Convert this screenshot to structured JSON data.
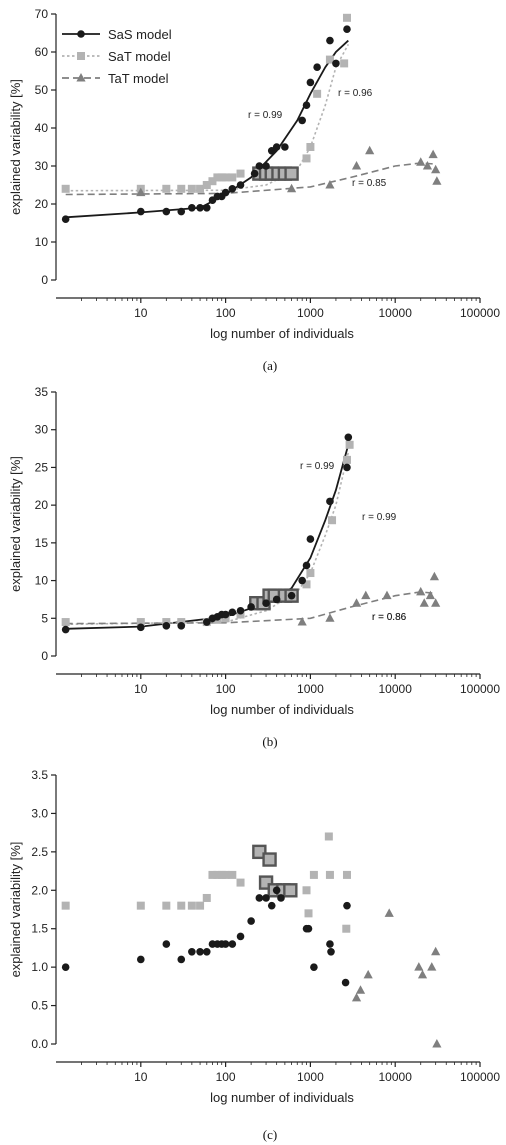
{
  "colors": {
    "sas": "#1a1a1a",
    "sat": "#b3b3b3",
    "tat": "#7f7f7f",
    "boxed": "#555555"
  },
  "chart_data": [
    {
      "type": "scatter",
      "caption": "(a)",
      "xlabel": "log number of individuals",
      "ylabel": "explained variability [%]",
      "x_scale": "log",
      "xlim": [
        1,
        100000
      ],
      "ylim": [
        0,
        70
      ],
      "x_ticks": [
        "10",
        "100",
        "1000",
        "10000",
        "100000"
      ],
      "y_ticks": [
        "0",
        "10",
        "20",
        "30",
        "40",
        "50",
        "60",
        "70"
      ],
      "legend": [
        "SaS model",
        "SaT model",
        "TaT model"
      ],
      "legend_position": "top-left",
      "annotations": [
        {
          "text": "r = 0.99",
          "x": 330,
          "y": 49
        },
        {
          "text": "r = 0.96",
          "x": 1700,
          "y": 48
        },
        {
          "text": "r = 0.85",
          "x": 3800,
          "y": 25
        }
      ],
      "series": [
        {
          "name": "SaS model",
          "marker": "circle",
          "points": [
            [
              1.3,
              16
            ],
            [
              10,
              18
            ],
            [
              20,
              18
            ],
            [
              30,
              18
            ],
            [
              40,
              19
            ],
            [
              50,
              19
            ],
            [
              60,
              19
            ],
            [
              70,
              21
            ],
            [
              80,
              22
            ],
            [
              90,
              22
            ],
            [
              100,
              23
            ],
            [
              120,
              24
            ],
            [
              150,
              25
            ],
            [
              220,
              28
            ],
            [
              250,
              30
            ],
            [
              300,
              30
            ],
            [
              350,
              34
            ],
            [
              400,
              35
            ],
            [
              500,
              35
            ],
            [
              800,
              42
            ],
            [
              900,
              46
            ],
            [
              1000,
              52
            ],
            [
              1200,
              56
            ],
            [
              1700,
              63
            ],
            [
              2000,
              57
            ],
            [
              2700,
              66
            ]
          ],
          "fit": [
            [
              1.3,
              16.5
            ],
            [
              10,
              17.8
            ],
            [
              50,
              19
            ],
            [
              100,
              22.5
            ],
            [
              200,
              27
            ],
            [
              400,
              34
            ],
            [
              700,
              42
            ],
            [
              1000,
              49
            ],
            [
              1500,
              56
            ],
            [
              2000,
              60
            ],
            [
              2800,
              63
            ]
          ]
        },
        {
          "name": "SaT model",
          "marker": "square",
          "points": [
            [
              1.3,
              24
            ],
            [
              10,
              24
            ],
            [
              20,
              24
            ],
            [
              30,
              24
            ],
            [
              40,
              24
            ],
            [
              50,
              24
            ],
            [
              60,
              25
            ],
            [
              70,
              26
            ],
            [
              80,
              27
            ],
            [
              90,
              27
            ],
            [
              100,
              27
            ],
            [
              120,
              27
            ],
            [
              150,
              28
            ],
            [
              900,
              32
            ],
            [
              1000,
              35
            ],
            [
              1200,
              49
            ],
            [
              1700,
              58
            ],
            [
              2500,
              57
            ],
            [
              2700,
              69
            ]
          ],
          "boxed": [
            [
              250,
              28
            ],
            [
              300,
              28
            ],
            [
              350,
              28
            ],
            [
              420,
              28
            ],
            [
              500,
              28
            ],
            [
              600,
              28
            ]
          ],
          "fit": [
            [
              1.3,
              23.5
            ],
            [
              100,
              23.6
            ],
            [
              300,
              25
            ],
            [
              700,
              29
            ],
            [
              1000,
              35
            ],
            [
              1500,
              46
            ],
            [
              2000,
              56
            ],
            [
              2800,
              62
            ]
          ]
        },
        {
          "name": "TaT model",
          "marker": "triangle",
          "points": [
            [
              10,
              23
            ],
            [
              600,
              24
            ],
            [
              1700,
              25
            ],
            [
              3500,
              30
            ],
            [
              5000,
              34
            ],
            [
              20000,
              31
            ],
            [
              24000,
              30
            ],
            [
              28000,
              33
            ],
            [
              30000,
              29
            ],
            [
              31000,
              26
            ]
          ],
          "fit": [
            [
              1.3,
              22.5
            ],
            [
              100,
              22.8
            ],
            [
              1000,
              24.5
            ],
            [
              3000,
              27
            ],
            [
              10000,
              30
            ],
            [
              20000,
              30.8
            ],
            [
              30000,
              30.5
            ]
          ]
        }
      ]
    },
    {
      "type": "scatter",
      "caption": "(b)",
      "xlabel": "log number of individuals",
      "ylabel": "explained variability [%]",
      "x_scale": "log",
      "xlim": [
        1,
        100000
      ],
      "ylim": [
        0,
        35
      ],
      "x_ticks": [
        "10",
        "100",
        "1000",
        "10000",
        "100000"
      ],
      "y_ticks": [
        "0",
        "5",
        "10",
        "15",
        "20",
        "25",
        "30",
        "35"
      ],
      "annotations": [
        {
          "text": "r = 0.99",
          "x": 200,
          "y": 26
        },
        {
          "text": "r = 0.99",
          "x": 2100,
          "y": 18.5
        },
        {
          "text": "r = 0.86",
          "x": 3600,
          "y": 6
        },
        {
          "text": "r = 0.86",
          "x": 3600,
          "y": 6
        }
      ],
      "series": [
        {
          "name": "SaS model",
          "marker": "circle",
          "points": [
            [
              1.3,
              3.5
            ],
            [
              10,
              3.8
            ],
            [
              20,
              4
            ],
            [
              30,
              4
            ],
            [
              60,
              4.5
            ],
            [
              70,
              5
            ],
            [
              80,
              5.2
            ],
            [
              90,
              5.5
            ],
            [
              100,
              5.5
            ],
            [
              120,
              5.8
            ],
            [
              150,
              6
            ],
            [
              200,
              6.5
            ],
            [
              300,
              7
            ],
            [
              400,
              7.5
            ],
            [
              600,
              8
            ],
            [
              800,
              10
            ],
            [
              900,
              12
            ],
            [
              1000,
              15.5
            ],
            [
              1700,
              20.5
            ],
            [
              2700,
              25
            ],
            [
              2800,
              29
            ]
          ],
          "fit": [
            [
              1.3,
              3.6
            ],
            [
              10,
              3.9
            ],
            [
              100,
              5.2
            ],
            [
              300,
              7
            ],
            [
              600,
              9
            ],
            [
              1000,
              13
            ],
            [
              1500,
              18
            ],
            [
              2000,
              22
            ],
            [
              2800,
              28
            ]
          ]
        },
        {
          "name": "SaT model",
          "marker": "square",
          "points": [
            [
              1.3,
              4.5
            ],
            [
              10,
              4.5
            ],
            [
              20,
              4.5
            ],
            [
              30,
              4.5
            ],
            [
              60,
              4.5
            ],
            [
              80,
              4.8
            ],
            [
              100,
              5
            ],
            [
              150,
              5.5
            ],
            [
              900,
              9.5
            ],
            [
              1000,
              11
            ],
            [
              1800,
              18
            ],
            [
              2700,
              26
            ],
            [
              2900,
              28
            ]
          ],
          "boxed": [
            [
              230,
              7
            ],
            [
              280,
              7
            ],
            [
              330,
              8
            ],
            [
              380,
              8
            ],
            [
              500,
              8
            ],
            [
              600,
              8
            ]
          ],
          "fit": [
            [
              1.3,
              4.2
            ],
            [
              100,
              4.5
            ],
            [
              300,
              6
            ],
            [
              700,
              8.5
            ],
            [
              1000,
              11
            ],
            [
              1500,
              16
            ],
            [
              2000,
              20
            ],
            [
              2800,
              27
            ]
          ]
        },
        {
          "name": "TaT model",
          "marker": "triangle",
          "points": [
            [
              800,
              4.5
            ],
            [
              1700,
              5
            ],
            [
              3500,
              7
            ],
            [
              4500,
              8
            ],
            [
              8000,
              8
            ],
            [
              20000,
              8.5
            ],
            [
              22000,
              7
            ],
            [
              26000,
              8
            ],
            [
              29000,
              10.5
            ],
            [
              30000,
              7
            ]
          ],
          "fit": [
            [
              1.3,
              4.3
            ],
            [
              100,
              4.4
            ],
            [
              1000,
              5
            ],
            [
              3000,
              6.5
            ],
            [
              10000,
              8
            ],
            [
              20000,
              8.5
            ],
            [
              30000,
              8.3
            ]
          ]
        }
      ]
    },
    {
      "type": "scatter",
      "caption": "(c)",
      "xlabel": "log number of individuals",
      "ylabel": "explained variability [%]",
      "x_scale": "log",
      "xlim": [
        1,
        100000
      ],
      "ylim": [
        0,
        3.5
      ],
      "x_ticks": [
        "10",
        "100",
        "1000",
        "10000",
        "100000"
      ],
      "y_ticks": [
        "0.0",
        "0.5",
        "1.0",
        "1.5",
        "2.0",
        "2.5",
        "3.0",
        "3.5"
      ],
      "series": [
        {
          "name": "SaS model",
          "marker": "circle",
          "points": [
            [
              1.3,
              1.0
            ],
            [
              10,
              1.1
            ],
            [
              20,
              1.3
            ],
            [
              30,
              1.1
            ],
            [
              40,
              1.2
            ],
            [
              50,
              1.2
            ],
            [
              60,
              1.2
            ],
            [
              70,
              1.3
            ],
            [
              80,
              1.3
            ],
            [
              90,
              1.3
            ],
            [
              100,
              1.3
            ],
            [
              120,
              1.3
            ],
            [
              150,
              1.4
            ],
            [
              200,
              1.6
            ],
            [
              250,
              1.9
            ],
            [
              300,
              1.9
            ],
            [
              350,
              1.8
            ],
            [
              400,
              2.0
            ],
            [
              450,
              1.9
            ],
            [
              900,
              1.5
            ],
            [
              950,
              1.5
            ],
            [
              1100,
              1.0
            ],
            [
              1700,
              1.3
            ],
            [
              1750,
              1.2
            ],
            [
              2600,
              0.8
            ],
            [
              2700,
              1.8
            ]
          ],
          "fit": []
        },
        {
          "name": "SaT model",
          "marker": "square",
          "points": [
            [
              1.3,
              1.8
            ],
            [
              10,
              1.8
            ],
            [
              20,
              1.8
            ],
            [
              30,
              1.8
            ],
            [
              40,
              1.8
            ],
            [
              50,
              1.8
            ],
            [
              60,
              1.9
            ],
            [
              70,
              2.2
            ],
            [
              80,
              2.2
            ],
            [
              90,
              2.2
            ],
            [
              100,
              2.2
            ],
            [
              120,
              2.2
            ],
            [
              150,
              2.1
            ],
            [
              900,
              2.0
            ],
            [
              950,
              1.7
            ],
            [
              1100,
              2.2
            ],
            [
              1650,
              2.7
            ],
            [
              1700,
              2.2
            ],
            [
              2700,
              2.2
            ],
            [
              2650,
              1.5
            ]
          ],
          "boxed": [
            [
              250,
              2.5
            ],
            [
              330,
              2.4
            ],
            [
              300,
              2.1
            ],
            [
              380,
              2.0
            ],
            [
              480,
              2.0
            ],
            [
              580,
              2.0
            ]
          ],
          "fit": []
        },
        {
          "name": "TaT model",
          "marker": "triangle",
          "points": [
            [
              3500,
              0.6
            ],
            [
              3900,
              0.7
            ],
            [
              4800,
              0.9
            ],
            [
              8500,
              1.7
            ],
            [
              19000,
              1.0
            ],
            [
              21000,
              0.9
            ],
            [
              27000,
              1.0
            ],
            [
              30000,
              1.2
            ],
            [
              31000,
              0.0
            ]
          ],
          "fit": []
        }
      ]
    }
  ]
}
